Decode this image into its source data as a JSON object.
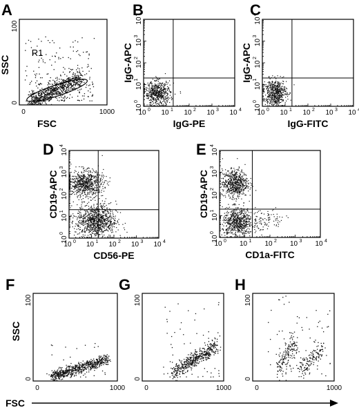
{
  "chart_data": [
    {
      "panel": "A",
      "type": "scatter",
      "xlabel": "FSC",
      "ylabel": "SSC",
      "xticks": [
        "0",
        "1000"
      ],
      "yticks": [
        "0",
        "100"
      ],
      "xlim": [
        0,
        1000
      ],
      "ylim": [
        0,
        100
      ],
      "gate": "R1",
      "clusters": [
        {
          "n": 700,
          "x": [
            130,
            700
          ],
          "y": [
            4,
            32
          ],
          "spread": 5
        },
        {
          "n": 220,
          "x": [
            60,
            850
          ],
          "y": [
            5,
            80
          ],
          "spread": 0
        }
      ]
    },
    {
      "panel": "B",
      "type": "scatter",
      "log": true,
      "xlabel": "IgG-PE",
      "ylabel": "IgG-APC",
      "quadrant": [
        1.3,
        1.3
      ],
      "clusters": [
        {
          "n": 550,
          "cx": 0.6,
          "cy": 0.6,
          "sx": 0.28,
          "sy": 0.28
        }
      ]
    },
    {
      "panel": "C",
      "type": "scatter",
      "log": true,
      "xlabel": "IgG-FITC",
      "ylabel": "IgG-APC",
      "quadrant": [
        1.3,
        1.3
      ],
      "clusters": [
        {
          "n": 550,
          "cx": 0.55,
          "cy": 0.65,
          "sx": 0.25,
          "sy": 0.3
        }
      ]
    },
    {
      "panel": "D",
      "type": "scatter",
      "log": true,
      "xlabel": "CD56-PE",
      "ylabel": "CD19-APC",
      "quadrant": [
        1.3,
        1.3
      ],
      "clusters": [
        {
          "n": 700,
          "cx": 0.7,
          "cy": 2.5,
          "sx": 0.4,
          "sy": 0.3
        },
        {
          "n": 900,
          "cx": 1.2,
          "cy": 0.8,
          "sx": 0.45,
          "sy": 0.38
        }
      ]
    },
    {
      "panel": "E",
      "type": "scatter",
      "log": true,
      "xlabel": "CD1a-FITC",
      "ylabel": "CD19-APC",
      "quadrant": [
        1.3,
        1.3
      ],
      "clusters": [
        {
          "n": 600,
          "cx": 0.6,
          "cy": 2.5,
          "sx": 0.25,
          "sy": 0.32
        },
        {
          "n": 650,
          "cx": 0.7,
          "cy": 0.7,
          "sx": 0.3,
          "sy": 0.33
        },
        {
          "n": 90,
          "cx": 1.8,
          "cy": 0.8,
          "sx": 0.4,
          "sy": 0.25
        }
      ]
    },
    {
      "panel": "F",
      "type": "scatter",
      "xticks": [
        "0",
        "1000"
      ],
      "yticks": [
        "0",
        "100"
      ],
      "xlim": [
        0,
        1000
      ],
      "ylim": [
        0,
        100
      ],
      "clusters": [
        {
          "n": 650,
          "x": [
            230,
            880
          ],
          "y": [
            6,
            25
          ],
          "spread": 3
        },
        {
          "n": 20,
          "x": [
            150,
            900
          ],
          "y": [
            5,
            45
          ],
          "spread": 0
        }
      ]
    },
    {
      "panel": "G",
      "type": "scatter",
      "xticks": [
        "0",
        "1000"
      ],
      "yticks": [
        "0",
        "100"
      ],
      "xlim": [
        0,
        1000
      ],
      "ylim": [
        0,
        100
      ],
      "clusters": [
        {
          "n": 450,
          "x": [
            380,
            900
          ],
          "y": [
            10,
            40
          ],
          "spread": 4
        },
        {
          "n": 60,
          "x": [
            250,
            950
          ],
          "y": [
            5,
            90
          ],
          "spread": 0
        }
      ]
    },
    {
      "panel": "H",
      "type": "scatter",
      "xticks": [
        "0",
        "1000"
      ],
      "yticks": [
        "0",
        "100"
      ],
      "xlim": [
        0,
        1000
      ],
      "ylim": [
        0,
        100
      ],
      "clusters": [
        {
          "n": 150,
          "x": [
            300,
            520
          ],
          "y": [
            15,
            45
          ],
          "spread": 8
        },
        {
          "n": 130,
          "x": [
            580,
            850
          ],
          "y": [
            12,
            38
          ],
          "spread": 5
        },
        {
          "n": 70,
          "x": [
            180,
            950
          ],
          "y": [
            5,
            100
          ],
          "spread": 0
        }
      ]
    }
  ],
  "shared_labels": {
    "row3_ylabel": "SSC",
    "row3_xlabel": "FSC"
  }
}
